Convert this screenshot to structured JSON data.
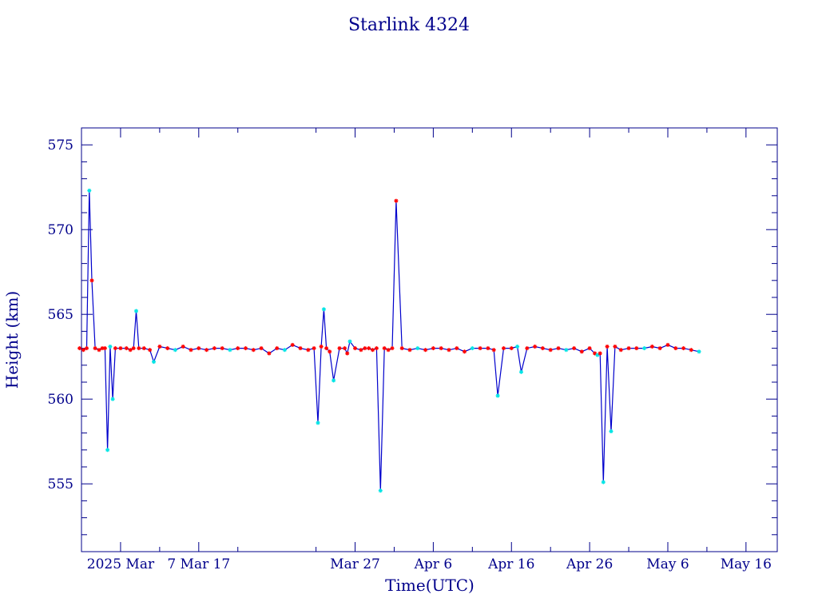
{
  "chart_data": {
    "type": "line",
    "title": "Starlink 4324",
    "xlabel": "Time(UTC)",
    "ylabel": "Height (km)",
    "xlim": [
      "2025-02-20",
      "2025-05-20"
    ],
    "ylim": [
      551,
      576
    ],
    "x_ticks": [
      {
        "date": "2025-02-25",
        "label": "2025 Mar"
      },
      {
        "date": "2025-03-07",
        "label": "7 Mar 17"
      },
      {
        "date": "2025-03-27",
        "label": "Mar 27"
      },
      {
        "date": "2025-04-06",
        "label": "Apr  6"
      },
      {
        "date": "2025-04-16",
        "label": "Apr 16"
      },
      {
        "date": "2025-04-26",
        "label": "Apr 26"
      },
      {
        "date": "2025-05-06",
        "label": "May  6"
      },
      {
        "date": "2025-05-16",
        "label": "May 16"
      }
    ],
    "y_ticks": [
      555,
      560,
      565,
      570,
      575
    ],
    "grid": false,
    "colors": {
      "line": "#0000cc",
      "axis": "#00008b",
      "marker_primary": "#ff0000",
      "marker_secondary": "#00e5e5"
    },
    "series": [
      {
        "values": [
          [
            "2025-02-20",
            563.0
          ],
          [
            "2025-02-20",
            562.9
          ],
          [
            "2025-02-21",
            563.0
          ],
          [
            "2025-02-21",
            572.3
          ],
          [
            "2025-02-21",
            567.0
          ],
          [
            "2025-02-22",
            563.0
          ],
          [
            "2025-02-22",
            562.9
          ],
          [
            "2025-02-23",
            563.0
          ],
          [
            "2025-02-23",
            563.0
          ],
          [
            "2025-02-23",
            557.0
          ],
          [
            "2025-02-24",
            563.1
          ],
          [
            "2025-02-24",
            560.0
          ],
          [
            "2025-02-24",
            563.0
          ],
          [
            "2025-02-25",
            563.0
          ],
          [
            "2025-02-26",
            563.0
          ],
          [
            "2025-02-26",
            562.9
          ],
          [
            "2025-02-27",
            563.0
          ],
          [
            "2025-02-27",
            565.2
          ],
          [
            "2025-02-27",
            563.0
          ],
          [
            "2025-02-28",
            563.0
          ],
          [
            "2025-03-01",
            562.9
          ],
          [
            "2025-03-01",
            562.2
          ],
          [
            "2025-03-02",
            563.1
          ],
          [
            "2025-03-03",
            563.0
          ],
          [
            "2025-03-04",
            562.9
          ],
          [
            "2025-03-05",
            563.1
          ],
          [
            "2025-03-06",
            562.9
          ],
          [
            "2025-03-07",
            563.0
          ],
          [
            "2025-03-08",
            562.9
          ],
          [
            "2025-03-09",
            563.0
          ],
          [
            "2025-03-10",
            563.0
          ],
          [
            "2025-03-11",
            562.9
          ],
          [
            "2025-03-12",
            563.0
          ],
          [
            "2025-03-13",
            563.0
          ],
          [
            "2025-03-14",
            562.9
          ],
          [
            "2025-03-15",
            563.0
          ],
          [
            "2025-03-16",
            562.7
          ],
          [
            "2025-03-17",
            563.0
          ],
          [
            "2025-03-18",
            562.9
          ],
          [
            "2025-03-19",
            563.2
          ],
          [
            "2025-03-20",
            563.0
          ],
          [
            "2025-03-21",
            562.9
          ],
          [
            "2025-03-22",
            563.0
          ],
          [
            "2025-03-22",
            558.6
          ],
          [
            "2025-03-23",
            563.1
          ],
          [
            "2025-03-23",
            565.3
          ],
          [
            "2025-03-23",
            563.0
          ],
          [
            "2025-03-24",
            562.8
          ],
          [
            "2025-03-24",
            561.1
          ],
          [
            "2025-03-25",
            563.0
          ],
          [
            "2025-03-26",
            563.0
          ],
          [
            "2025-03-26",
            562.7
          ],
          [
            "2025-03-26",
            563.4
          ],
          [
            "2025-03-27",
            563.0
          ],
          [
            "2025-03-28",
            562.9
          ],
          [
            "2025-03-28",
            563.0
          ],
          [
            "2025-03-29",
            563.0
          ],
          [
            "2025-03-29",
            562.9
          ],
          [
            "2025-03-30",
            563.0
          ],
          [
            "2025-03-30",
            554.6
          ],
          [
            "2025-03-31",
            563.0
          ],
          [
            "2025-03-31",
            562.9
          ],
          [
            "2025-04-01",
            563.0
          ],
          [
            "2025-04-01",
            571.7
          ],
          [
            "2025-04-02",
            563.0
          ],
          [
            "2025-04-03",
            562.9
          ],
          [
            "2025-04-04",
            563.0
          ],
          [
            "2025-04-05",
            562.9
          ],
          [
            "2025-04-06",
            563.0
          ],
          [
            "2025-04-07",
            563.0
          ],
          [
            "2025-04-08",
            562.9
          ],
          [
            "2025-04-09",
            563.0
          ],
          [
            "2025-04-10",
            562.8
          ],
          [
            "2025-04-11",
            563.0
          ],
          [
            "2025-04-12",
            563.0
          ],
          [
            "2025-04-13",
            563.0
          ],
          [
            "2025-04-14",
            562.9
          ],
          [
            "2025-04-14",
            560.2
          ],
          [
            "2025-04-15",
            563.0
          ],
          [
            "2025-04-16",
            563.0
          ],
          [
            "2025-04-17",
            563.1
          ],
          [
            "2025-04-17",
            561.6
          ],
          [
            "2025-04-18",
            563.0
          ],
          [
            "2025-04-19",
            563.1
          ],
          [
            "2025-04-20",
            563.0
          ],
          [
            "2025-04-21",
            562.9
          ],
          [
            "2025-04-22",
            563.0
          ],
          [
            "2025-04-23",
            562.9
          ],
          [
            "2025-04-24",
            563.0
          ],
          [
            "2025-04-25",
            562.8
          ],
          [
            "2025-04-26",
            563.0
          ],
          [
            "2025-04-27",
            562.7
          ],
          [
            "2025-04-27",
            562.6
          ],
          [
            "2025-04-27",
            562.7
          ],
          [
            "2025-04-28",
            555.1
          ],
          [
            "2025-04-28",
            563.1
          ],
          [
            "2025-04-29",
            558.1
          ],
          [
            "2025-04-29",
            563.1
          ],
          [
            "2025-04-30",
            562.9
          ],
          [
            "2025-05-01",
            563.0
          ],
          [
            "2025-05-02",
            563.0
          ],
          [
            "2025-05-03",
            563.0
          ],
          [
            "2025-05-04",
            563.1
          ],
          [
            "2025-05-05",
            563.0
          ],
          [
            "2025-05-06",
            563.2
          ],
          [
            "2025-05-07",
            563.0
          ],
          [
            "2025-05-08",
            563.0
          ],
          [
            "2025-05-09",
            562.9
          ],
          [
            "2025-05-10",
            562.8
          ]
        ]
      }
    ]
  }
}
